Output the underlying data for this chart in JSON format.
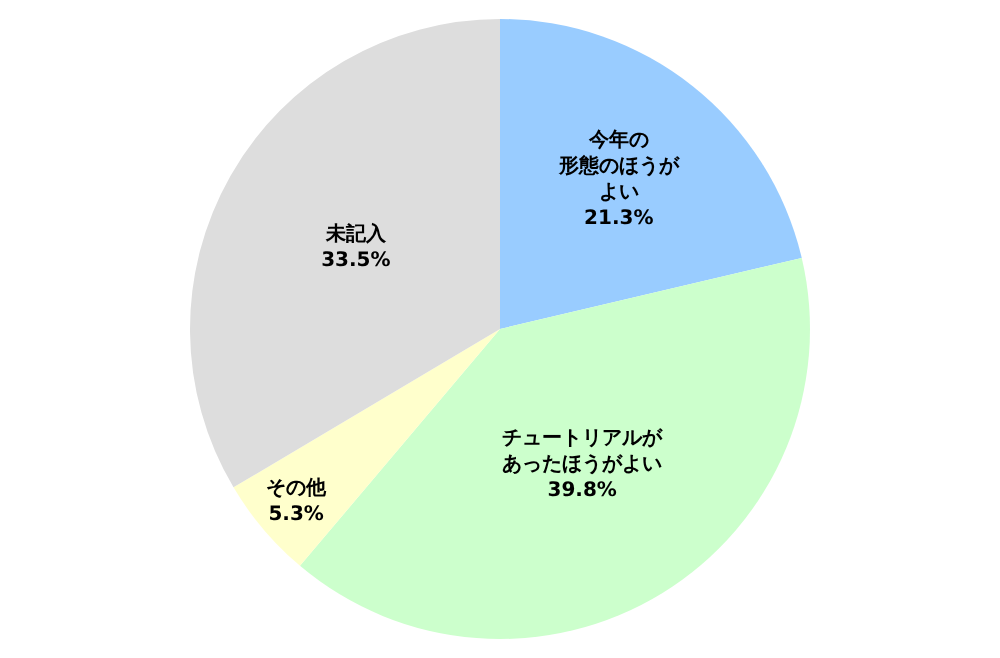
{
  "chart_data": {
    "type": "pie",
    "categories": [
      "今年の形態のほうがよい",
      "チュートリアルがあったほうがよい",
      "その他",
      "未記入"
    ],
    "values": [
      21.3,
      39.8,
      5.3,
      33.5
    ],
    "value_labels": [
      "21.3%",
      "39.8%",
      "5.3%",
      "33.5%"
    ],
    "colors": [
      "#99ccff",
      "#ccffcc",
      "#ffffcc",
      "#dddddd"
    ],
    "legend": false
  }
}
